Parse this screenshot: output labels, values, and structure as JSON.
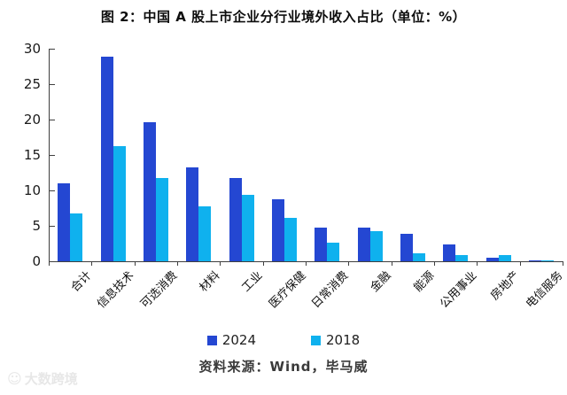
{
  "title": "图 2：中国 A 股上市企业分行业境外收入占比（单位：%）",
  "source_note": "资料来源：Wind，毕马威",
  "watermark": "大数跨境",
  "colors": {
    "series_2024": "#2447d2",
    "series_2018": "#0fb1ee",
    "axis": "#3f3f3f",
    "tick_text": "#1a1a1a"
  },
  "legend": {
    "items": [
      {
        "label": "2024",
        "color": "#2447d2"
      },
      {
        "label": "2018",
        "color": "#0fb1ee"
      }
    ]
  },
  "chart_data": {
    "type": "bar",
    "title": "图 2：中国 A 股上市企业分行业境外收入占比（单位：%）",
    "categories": [
      "合计",
      "信息技术",
      "可选消费",
      "材料",
      "工业",
      "医疗保健",
      "日常消费",
      "金融",
      "能源",
      "公用事业",
      "房地产",
      "电信服务"
    ],
    "series": [
      {
        "name": "2024",
        "color": "#2447d2",
        "values": [
          11.0,
          28.9,
          19.6,
          13.3,
          11.7,
          8.7,
          4.8,
          4.7,
          3.9,
          2.4,
          0.5,
          0.1
        ]
      },
      {
        "name": "2018",
        "color": "#0fb1ee",
        "values": [
          6.7,
          16.2,
          11.7,
          7.7,
          9.4,
          6.1,
          2.6,
          4.3,
          1.1,
          0.9,
          0.9,
          0.1
        ]
      }
    ],
    "xlabel": "",
    "ylabel": "",
    "ylim": [
      0,
      30
    ],
    "y_ticks": [
      0,
      5,
      10,
      15,
      20,
      25,
      30
    ],
    "grid": false,
    "legend_position": "bottom"
  }
}
